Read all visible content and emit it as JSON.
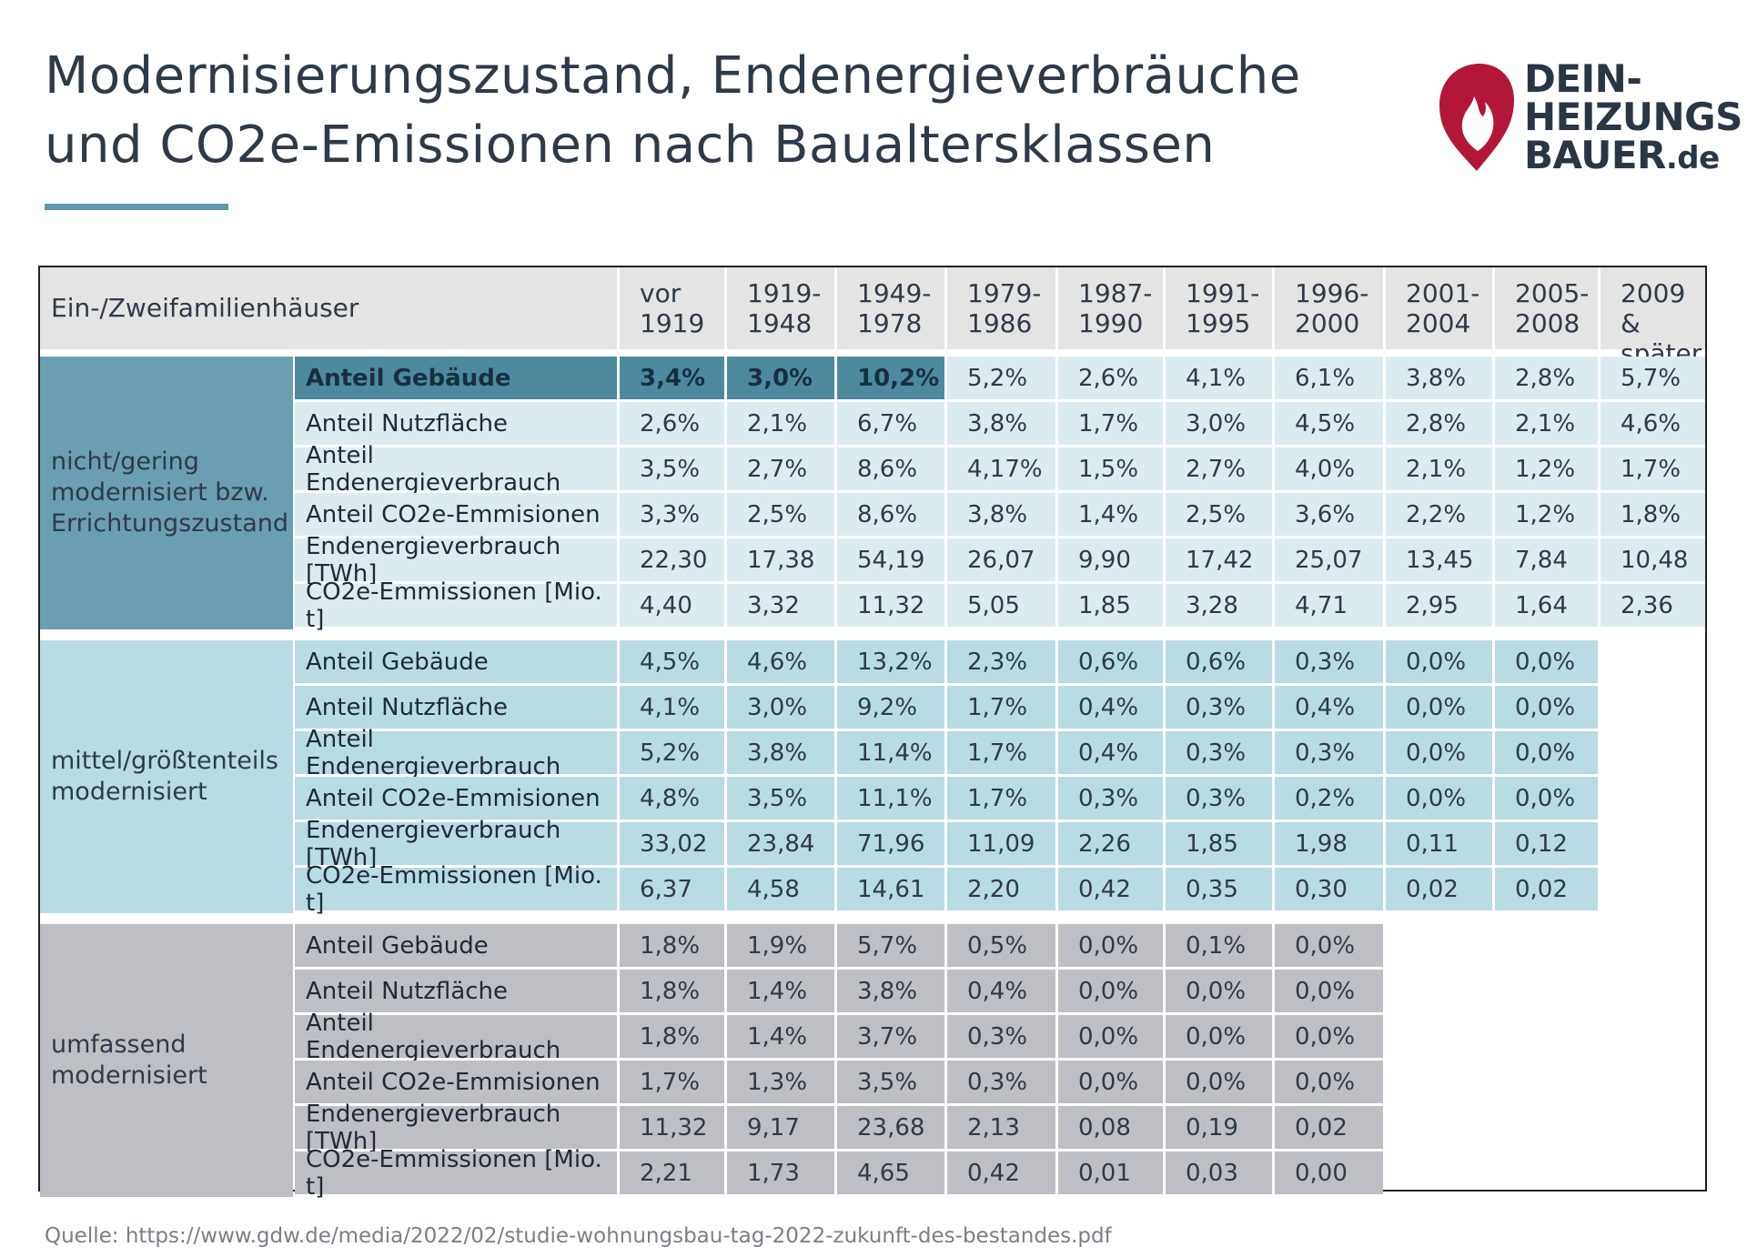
{
  "title": {
    "line1": "Modernisierungszustand, Endenergieverbräuche",
    "line2": "und CO2e-Emissionen nach Baualtersklassen"
  },
  "logo": {
    "line1": "DEIN-",
    "line2": "HEIZUNGS",
    "line3": "BAUER",
    "suffix": ".de",
    "icon": "flame-icon",
    "color": "#b2173a"
  },
  "source": "Quelle: https://www.gdw.de/media/2022/02/studie-wohnungsbau-tag-2022-zukunft-des-bestandes.pdf",
  "colors": {
    "group1_label": "#6a9fb1",
    "group1_cells": "#dcebf0",
    "group1_highlight": "#4d8aa0",
    "group2_label": "#b9dbe4",
    "group2_cells": "#b9dbe4",
    "group3_label": "#bdbfc4",
    "group3_cells": "#bdbfc4",
    "header": "#e4e4e4",
    "accent": "#5b97ad"
  },
  "chart_data": {
    "type": "table",
    "title": "Modernisierungszustand, Endenergieverbräuche und CO2e-Emissionen nach Baualtersklassen",
    "header_label": "Ein-/Zweifamilienhäuser",
    "columns": [
      [
        "vor",
        "1919"
      ],
      [
        "1919-",
        "1948"
      ],
      [
        "1949-",
        "1978"
      ],
      [
        "1979-",
        "1986"
      ],
      [
        "1987-",
        "1990"
      ],
      [
        "1991-",
        "1995"
      ],
      [
        "1996-",
        "2000"
      ],
      [
        "2001-",
        "2004"
      ],
      [
        "2005-",
        "2008"
      ],
      [
        "2009 &",
        "später"
      ]
    ],
    "groups": [
      {
        "label_lines": [
          "nicht/gering",
          "modernisiert bzw.",
          "Errichtungszustand"
        ],
        "highlight_row": 0,
        "highlight_cols": 3,
        "rows": [
          {
            "label": "Anteil Gebäude",
            "values": [
              "3,4%",
              "3,0%",
              "10,2%",
              "5,2%",
              "2,6%",
              "4,1%",
              "6,1%",
              "3,8%",
              "2,8%",
              "5,7%"
            ]
          },
          {
            "label": "Anteil Nutzfläche",
            "values": [
              "2,6%",
              "2,1%",
              "6,7%",
              "3,8%",
              "1,7%",
              "3,0%",
              "4,5%",
              "2,8%",
              "2,1%",
              "4,6%"
            ]
          },
          {
            "label": "Anteil Endenergieverbrauch",
            "values": [
              "3,5%",
              "2,7%",
              "8,6%",
              "4,17%",
              "1,5%",
              "2,7%",
              "4,0%",
              "2,1%",
              "1,2%",
              "1,7%"
            ]
          },
          {
            "label": "Anteil CO2e-Emmisionen",
            "values": [
              "3,3%",
              "2,5%",
              "8,6%",
              "3,8%",
              "1,4%",
              "2,5%",
              "3,6%",
              "2,2%",
              "1,2%",
              "1,8%"
            ]
          },
          {
            "label": "Endenergieverbrauch [TWh]",
            "values": [
              "22,30",
              "17,38",
              "54,19",
              "26,07",
              "9,90",
              "17,42",
              "25,07",
              "13,45",
              "7,84",
              "10,48"
            ]
          },
          {
            "label": "CO2e-Emmissionen [Mio. t]",
            "values": [
              "4,40",
              "3,32",
              "11,32",
              "5,05",
              "1,85",
              "3,28",
              "4,71",
              "2,95",
              "1,64",
              "2,36"
            ]
          }
        ]
      },
      {
        "label_lines": [
          "mittel/größtenteils",
          "modernisiert"
        ],
        "rows": [
          {
            "label": "Anteil Gebäude",
            "values": [
              "4,5%",
              "4,6%",
              "13,2%",
              "2,3%",
              "0,6%",
              "0,6%",
              "0,3%",
              "0,0%",
              "0,0%"
            ]
          },
          {
            "label": "Anteil Nutzfläche",
            "values": [
              "4,1%",
              "3,0%",
              "9,2%",
              "1,7%",
              "0,4%",
              "0,3%",
              "0,4%",
              "0,0%",
              "0,0%"
            ]
          },
          {
            "label": "Anteil Endenergieverbrauch",
            "values": [
              "5,2%",
              "3,8%",
              "11,4%",
              "1,7%",
              "0,4%",
              "0,3%",
              "0,3%",
              "0,0%",
              "0,0%"
            ]
          },
          {
            "label": "Anteil CO2e-Emmisionen",
            "values": [
              "4,8%",
              "3,5%",
              "11,1%",
              "1,7%",
              "0,3%",
              "0,3%",
              "0,2%",
              "0,0%",
              "0,0%"
            ]
          },
          {
            "label": "Endenergieverbrauch [TWh]",
            "values": [
              "33,02",
              "23,84",
              "71,96",
              "11,09",
              "2,26",
              "1,85",
              "1,98",
              "0,11",
              "0,12"
            ]
          },
          {
            "label": "CO2e-Emmissionen [Mio. t]",
            "values": [
              "6,37",
              "4,58",
              "14,61",
              "2,20",
              "0,42",
              "0,35",
              "0,30",
              "0,02",
              "0,02"
            ]
          }
        ]
      },
      {
        "label_lines": [
          "umfassend",
          "modernisiert"
        ],
        "rows": [
          {
            "label": "Anteil Gebäude",
            "values": [
              "1,8%",
              "1,9%",
              "5,7%",
              "0,5%",
              "0,0%",
              "0,1%",
              "0,0%"
            ]
          },
          {
            "label": "Anteil Nutzfläche",
            "values": [
              "1,8%",
              "1,4%",
              "3,8%",
              "0,4%",
              "0,0%",
              "0,0%",
              "0,0%"
            ]
          },
          {
            "label": "Anteil Endenergieverbrauch",
            "values": [
              "1,8%",
              "1,4%",
              "3,7%",
              "0,3%",
              "0,0%",
              "0,0%",
              "0,0%"
            ]
          },
          {
            "label": "Anteil CO2e-Emmisionen",
            "values": [
              "1,7%",
              "1,3%",
              "3,5%",
              "0,3%",
              "0,0%",
              "0,0%",
              "0,0%"
            ]
          },
          {
            "label": "Endenergieverbrauch [TWh]",
            "values": [
              "11,32",
              "9,17",
              "23,68",
              "2,13",
              "0,08",
              "0,19",
              "0,02"
            ]
          },
          {
            "label": "CO2e-Emmissionen [Mio. t]",
            "values": [
              "2,21",
              "1,73",
              "4,65",
              "0,42",
              "0,01",
              "0,03",
              "0,00"
            ]
          }
        ]
      }
    ]
  }
}
